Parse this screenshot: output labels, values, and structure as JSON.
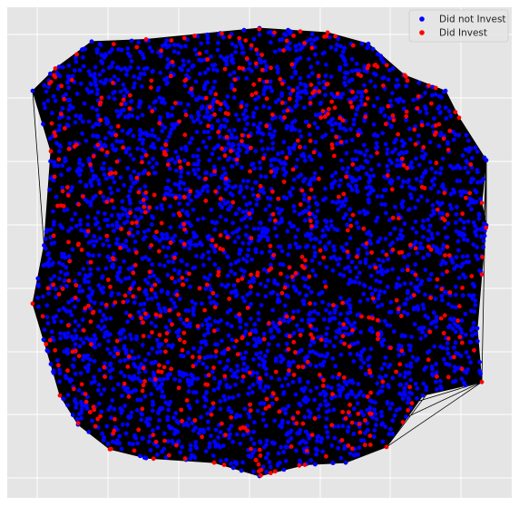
{
  "chart_data": {
    "type": "scatter",
    "title": "",
    "xlabel": "",
    "ylabel": "",
    "xlim": [
      -1.08,
      1.08
    ],
    "ylim": [
      -1.08,
      1.08
    ],
    "grid": true,
    "axis_ticks_visible": false,
    "legend_position": "top-right",
    "background_color": "#e5e5e5",
    "grid_color": "#ffffff",
    "edge_color": "#000000",
    "description_of_layout": "network graph drawn with spring layout; dense black edges connect thousands of nodes",
    "series": [
      {
        "name": "Did not Invest",
        "color": "#0000ff",
        "approx_count": 5000
      },
      {
        "name": "Did Invest",
        "color": "#ff0000",
        "approx_count": 700
      }
    ],
    "hull_points": [
      [
        -0.74,
        0.94
      ],
      [
        -0.5,
        0.95
      ],
      [
        0.0,
        1.0
      ],
      [
        0.3,
        0.98
      ],
      [
        0.48,
        0.93
      ],
      [
        0.64,
        0.79
      ],
      [
        0.82,
        0.72
      ],
      [
        0.88,
        0.6
      ],
      [
        1.0,
        0.41
      ],
      [
        0.98,
        0.22
      ],
      [
        1.0,
        0.12
      ],
      [
        0.98,
        -0.1
      ],
      [
        0.96,
        -0.34
      ],
      [
        0.98,
        -0.58
      ],
      [
        0.72,
        -0.64
      ],
      [
        0.56,
        -0.87
      ],
      [
        0.38,
        -0.94
      ],
      [
        0.2,
        -0.95
      ],
      [
        0.0,
        -1.0
      ],
      [
        -0.2,
        -0.94
      ],
      [
        -0.5,
        -0.92
      ],
      [
        -0.66,
        -0.88
      ],
      [
        -0.8,
        -0.77
      ],
      [
        -0.88,
        -0.64
      ],
      [
        -0.92,
        -0.5
      ],
      [
        -1.0,
        -0.23
      ],
      [
        -0.95,
        0.03
      ],
      [
        -0.92,
        0.45
      ],
      [
        -1.0,
        0.72
      ],
      [
        -0.9,
        0.82
      ]
    ]
  }
}
